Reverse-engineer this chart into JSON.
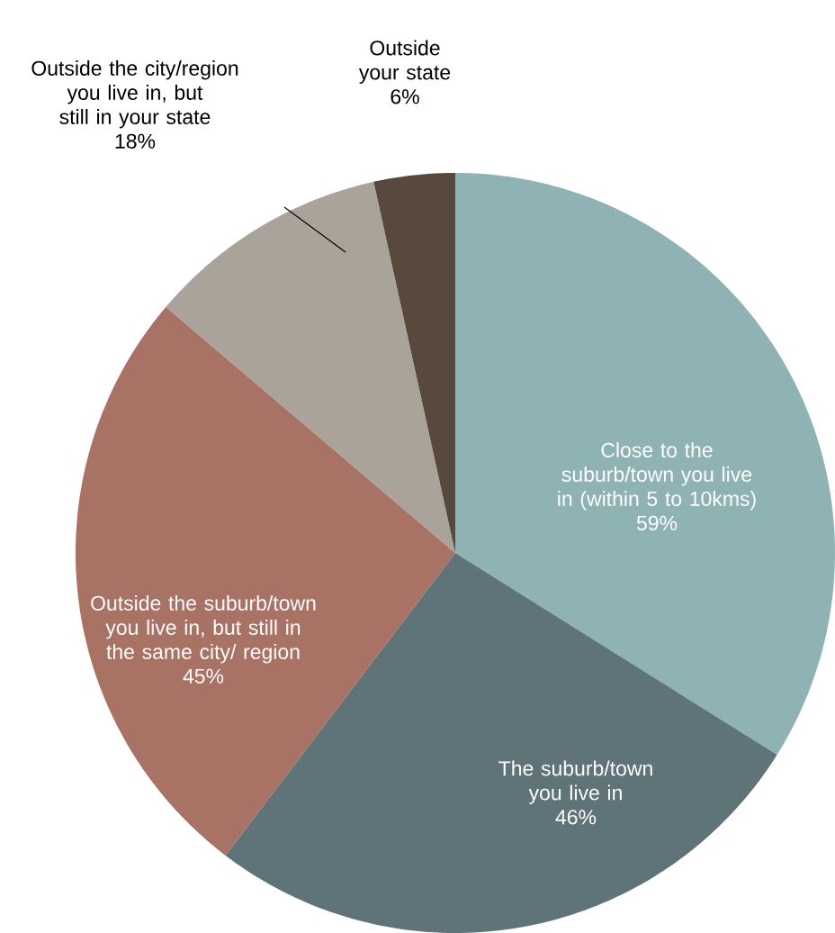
{
  "chart_data": {
    "type": "pie",
    "categories": [
      "Close to the suburb/town you live in (within 5 to 10kms)",
      "The suburb/town you live in",
      "Outside the suburb/town you live in, but still in the same city/ region",
      "Outside the city/region you live in, but still in your state",
      "Outside your state"
    ],
    "values": [
      59,
      46,
      45,
      18,
      6
    ],
    "value_labels": [
      "59%",
      "46%",
      "45%",
      "18%",
      "6%"
    ],
    "colors": [
      "#8fb3b5",
      "#5f7479",
      "#a87265",
      "#aaa39a",
      "#574a3c"
    ]
  }
}
